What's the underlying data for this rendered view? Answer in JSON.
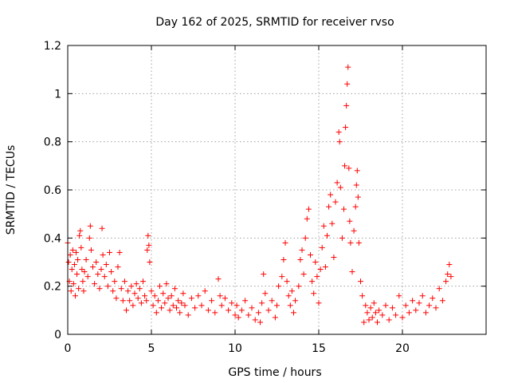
{
  "chart_data": {
    "type": "scatter",
    "title": "Day 162 of 2025, SRMTID for receiver rvso",
    "xlabel": "GPS time / hours",
    "ylabel": "SRMTID / TECUs",
    "xlim": [
      0,
      25
    ],
    "ylim": [
      0,
      1.2
    ],
    "xticks": [
      0,
      5,
      10,
      15,
      20
    ],
    "xtick_labels": [
      "0",
      "5",
      "10",
      "15",
      "20"
    ],
    "yticks": [
      0,
      0.2,
      0.4,
      0.6,
      0.8,
      1,
      1.2
    ],
    "ytick_labels": [
      "0",
      "0.2",
      "0.4",
      "0.6",
      "0.8",
      "1",
      "1.2"
    ],
    "grid": true,
    "marker": "+",
    "color": "#ff0000",
    "series": [
      {
        "name": "SRMTID",
        "points": [
          [
            0.0,
            0.38
          ],
          [
            0.05,
            0.3
          ],
          [
            0.1,
            0.22
          ],
          [
            0.15,
            0.33
          ],
          [
            0.2,
            0.18
          ],
          [
            0.25,
            0.27
          ],
          [
            0.3,
            0.35
          ],
          [
            0.35,
            0.21
          ],
          [
            0.4,
            0.29
          ],
          [
            0.45,
            0.16
          ],
          [
            0.5,
            0.34
          ],
          [
            0.55,
            0.25
          ],
          [
            0.6,
            0.31
          ],
          [
            0.65,
            0.19
          ],
          [
            0.7,
            0.41
          ],
          [
            0.75,
            0.43
          ],
          [
            0.8,
            0.36
          ],
          [
            0.85,
            0.27
          ],
          [
            0.9,
            0.22
          ],
          [
            0.95,
            0.18
          ],
          [
            1.0,
            0.26
          ],
          [
            1.1,
            0.31
          ],
          [
            1.2,
            0.24
          ],
          [
            1.3,
            0.4
          ],
          [
            1.35,
            0.45
          ],
          [
            1.4,
            0.35
          ],
          [
            1.5,
            0.28
          ],
          [
            1.6,
            0.21
          ],
          [
            1.7,
            0.3
          ],
          [
            1.8,
            0.25
          ],
          [
            1.9,
            0.19
          ],
          [
            2.0,
            0.27
          ],
          [
            2.05,
            0.44
          ],
          [
            2.1,
            0.33
          ],
          [
            2.2,
            0.24
          ],
          [
            2.3,
            0.29
          ],
          [
            2.4,
            0.2
          ],
          [
            2.5,
            0.34
          ],
          [
            2.6,
            0.26
          ],
          [
            2.7,
            0.18
          ],
          [
            2.8,
            0.22
          ],
          [
            2.9,
            0.15
          ],
          [
            3.0,
            0.28
          ],
          [
            3.1,
            0.34
          ],
          [
            3.2,
            0.19
          ],
          [
            3.3,
            0.14
          ],
          [
            3.4,
            0.22
          ],
          [
            3.5,
            0.1
          ],
          [
            3.6,
            0.18
          ],
          [
            3.7,
            0.14
          ],
          [
            3.8,
            0.2
          ],
          [
            3.9,
            0.12
          ],
          [
            4.0,
            0.17
          ],
          [
            4.1,
            0.21
          ],
          [
            4.2,
            0.15
          ],
          [
            4.3,
            0.19
          ],
          [
            4.4,
            0.13
          ],
          [
            4.5,
            0.22
          ],
          [
            4.6,
            0.16
          ],
          [
            4.7,
            0.14
          ],
          [
            4.75,
            0.35
          ],
          [
            4.8,
            0.41
          ],
          [
            4.85,
            0.37
          ],
          [
            4.9,
            0.3
          ],
          [
            5.0,
            0.18
          ],
          [
            5.1,
            0.12
          ],
          [
            5.2,
            0.16
          ],
          [
            5.3,
            0.09
          ],
          [
            5.4,
            0.14
          ],
          [
            5.5,
            0.2
          ],
          [
            5.6,
            0.11
          ],
          [
            5.7,
            0.17
          ],
          [
            5.8,
            0.13
          ],
          [
            5.9,
            0.21
          ],
          [
            6.0,
            0.15
          ],
          [
            6.1,
            0.1
          ],
          [
            6.2,
            0.16
          ],
          [
            6.3,
            0.12
          ],
          [
            6.4,
            0.19
          ],
          [
            6.5,
            0.11
          ],
          [
            6.6,
            0.14
          ],
          [
            6.7,
            0.09
          ],
          [
            6.8,
            0.13
          ],
          [
            6.9,
            0.17
          ],
          [
            7.0,
            0.12
          ],
          [
            7.2,
            0.08
          ],
          [
            7.4,
            0.15
          ],
          [
            7.6,
            0.11
          ],
          [
            7.8,
            0.16
          ],
          [
            8.0,
            0.12
          ],
          [
            8.2,
            0.18
          ],
          [
            8.4,
            0.1
          ],
          [
            8.6,
            0.14
          ],
          [
            8.8,
            0.09
          ],
          [
            9.0,
            0.23
          ],
          [
            9.1,
            0.16
          ],
          [
            9.2,
            0.12
          ],
          [
            9.4,
            0.15
          ],
          [
            9.6,
            0.1
          ],
          [
            9.8,
            0.13
          ],
          [
            10.0,
            0.08
          ],
          [
            10.1,
            0.12
          ],
          [
            10.2,
            0.07
          ],
          [
            10.4,
            0.1
          ],
          [
            10.6,
            0.14
          ],
          [
            10.8,
            0.08
          ],
          [
            11.0,
            0.11
          ],
          [
            11.2,
            0.06
          ],
          [
            11.4,
            0.09
          ],
          [
            11.5,
            0.05
          ],
          [
            11.6,
            0.13
          ],
          [
            11.7,
            0.25
          ],
          [
            11.8,
            0.17
          ],
          [
            12.0,
            0.1
          ],
          [
            12.2,
            0.14
          ],
          [
            12.4,
            0.07
          ],
          [
            12.5,
            0.12
          ],
          [
            12.6,
            0.2
          ],
          [
            12.8,
            0.24
          ],
          [
            12.9,
            0.31
          ],
          [
            13.0,
            0.38
          ],
          [
            13.1,
            0.22
          ],
          [
            13.2,
            0.16
          ],
          [
            13.3,
            0.12
          ],
          [
            13.4,
            0.18
          ],
          [
            13.5,
            0.09
          ],
          [
            13.6,
            0.14
          ],
          [
            13.8,
            0.2
          ],
          [
            13.9,
            0.31
          ],
          [
            14.0,
            0.35
          ],
          [
            14.1,
            0.25
          ],
          [
            14.2,
            0.4
          ],
          [
            14.3,
            0.48
          ],
          [
            14.4,
            0.52
          ],
          [
            14.5,
            0.33
          ],
          [
            14.6,
            0.22
          ],
          [
            14.7,
            0.17
          ],
          [
            14.8,
            0.3
          ],
          [
            14.9,
            0.24
          ],
          [
            15.0,
            0.13
          ],
          [
            15.1,
            0.27
          ],
          [
            15.2,
            0.36
          ],
          [
            15.3,
            0.45
          ],
          [
            15.4,
            0.28
          ],
          [
            15.5,
            0.41
          ],
          [
            15.6,
            0.53
          ],
          [
            15.7,
            0.58
          ],
          [
            15.8,
            0.46
          ],
          [
            15.9,
            0.32
          ],
          [
            16.0,
            0.55
          ],
          [
            16.1,
            0.63
          ],
          [
            16.2,
            0.84
          ],
          [
            16.25,
            0.8
          ],
          [
            16.3,
            0.61
          ],
          [
            16.4,
            0.4
          ],
          [
            16.5,
            0.52
          ],
          [
            16.55,
            0.7
          ],
          [
            16.6,
            0.86
          ],
          [
            16.65,
            0.95
          ],
          [
            16.7,
            1.04
          ],
          [
            16.75,
            1.11
          ],
          [
            16.8,
            0.69
          ],
          [
            16.85,
            0.47
          ],
          [
            16.9,
            0.38
          ],
          [
            17.0,
            0.26
          ],
          [
            17.1,
            0.43
          ],
          [
            17.2,
            0.53
          ],
          [
            17.25,
            0.62
          ],
          [
            17.3,
            0.68
          ],
          [
            17.35,
            0.57
          ],
          [
            17.4,
            0.38
          ],
          [
            17.5,
            0.22
          ],
          [
            17.6,
            0.16
          ],
          [
            17.7,
            0.05
          ],
          [
            17.8,
            0.12
          ],
          [
            17.9,
            0.09
          ],
          [
            18.0,
            0.06
          ],
          [
            18.1,
            0.11
          ],
          [
            18.2,
            0.07
          ],
          [
            18.3,
            0.13
          ],
          [
            18.4,
            0.09
          ],
          [
            18.5,
            0.05
          ],
          [
            18.6,
            0.1
          ],
          [
            18.8,
            0.08
          ],
          [
            19.0,
            0.12
          ],
          [
            19.2,
            0.06
          ],
          [
            19.4,
            0.11
          ],
          [
            19.6,
            0.08
          ],
          [
            19.8,
            0.16
          ],
          [
            20.0,
            0.07
          ],
          [
            20.2,
            0.12
          ],
          [
            20.4,
            0.09
          ],
          [
            20.6,
            0.14
          ],
          [
            20.8,
            0.1
          ],
          [
            21.0,
            0.13
          ],
          [
            21.2,
            0.16
          ],
          [
            21.4,
            0.09
          ],
          [
            21.6,
            0.12
          ],
          [
            21.8,
            0.15
          ],
          [
            22.0,
            0.11
          ],
          [
            22.2,
            0.19
          ],
          [
            22.4,
            0.14
          ],
          [
            22.6,
            0.22
          ],
          [
            22.7,
            0.25
          ],
          [
            22.8,
            0.29
          ],
          [
            22.9,
            0.24
          ]
        ]
      }
    ]
  }
}
